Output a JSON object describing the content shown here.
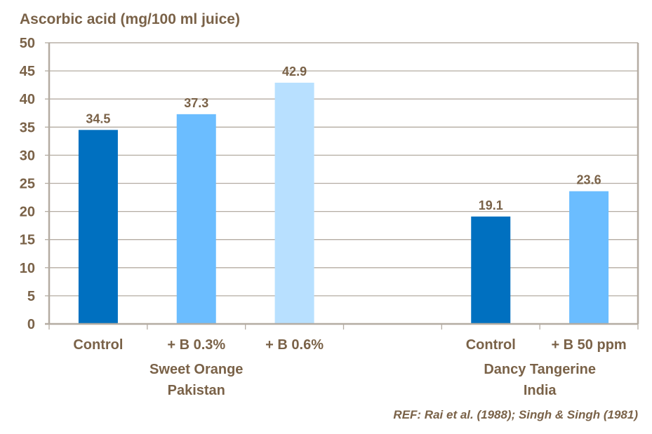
{
  "chart_data": {
    "type": "bar",
    "title": "Ascorbic acid (mg/100 ml juice)",
    "xlabel": "",
    "ylabel": "Ascorbic acid (mg/100 ml juice)",
    "ylim": [
      0,
      50
    ],
    "yticks": [
      0,
      5,
      10,
      15,
      20,
      25,
      30,
      35,
      40,
      45,
      50
    ],
    "grid": true,
    "categories": [
      "Control",
      "+ B 0.3%",
      "+ B 0.6%",
      "",
      "Control",
      "+ B 50 ppm"
    ],
    "values": [
      34.5,
      37.3,
      42.9,
      null,
      19.1,
      23.6
    ],
    "data_labels": [
      "34.5",
      "37.3",
      "42.9",
      "",
      "19.1",
      "23.6"
    ],
    "bar_colors": [
      "#0070c0",
      "#6bbdff",
      "#b8e0ff",
      null,
      "#0070c0",
      "#6bbdff"
    ],
    "groups": [
      {
        "line1": "Sweet Orange",
        "line2": "Pakistan",
        "span": [
          0,
          2
        ]
      },
      {
        "line1": "Dancy Tangerine",
        "line2": "India",
        "span": [
          4,
          5
        ]
      }
    ],
    "legend": null
  },
  "reference": "REF: Rai et al. (1988); Singh & Singh (1981)",
  "colors": {
    "text": "#7a6248",
    "axis": "#b4aca2",
    "grid": "#b4aca2"
  }
}
